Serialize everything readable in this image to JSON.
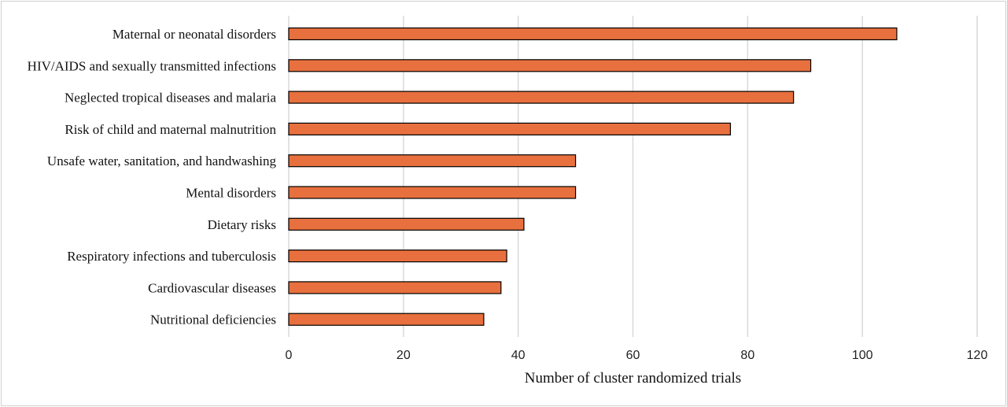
{
  "chart_data": {
    "type": "bar",
    "orientation": "horizontal",
    "categories": [
      "Maternal or neonatal disorders",
      "HIV/AIDS and sexually transmitted infections",
      "Neglected tropical diseases and malaria",
      "Risk of child and maternal malnutrition",
      "Unsafe water, sanitation, and handwashing",
      "Mental disorders",
      "Dietary risks",
      "Respiratory infections and tuberculosis",
      "Cardiovascular diseases",
      "Nutritional deficiencies"
    ],
    "values": [
      106,
      91,
      88,
      77,
      50,
      50,
      41,
      38,
      37,
      34
    ],
    "xlabel": "Number of cluster randomized trials",
    "ylabel": "",
    "xlim": [
      0,
      120
    ],
    "xticks": [
      "0",
      "20",
      "40",
      "60",
      "80",
      "100",
      "120"
    ],
    "grid": "vertical",
    "bar_color": "#e8703e",
    "bar_edge_color": "#000000"
  }
}
